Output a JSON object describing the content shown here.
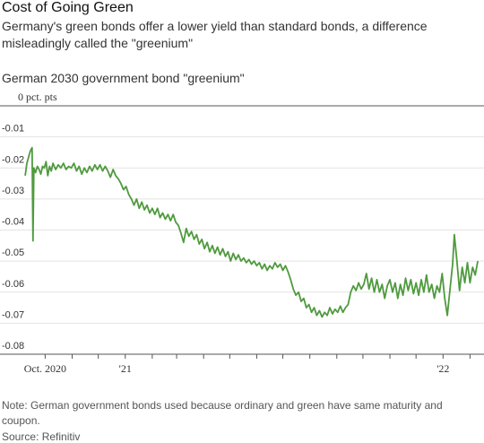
{
  "title": "Cost of Going Green",
  "subtitle": "Germany's green bonds offer a lower yield than standard bonds, a difference misleadingly called the \"greenium\"",
  "note": "Note: German government bonds used because ordinary and green have same maturity and coupon.",
  "source": "Source: Refinitiv",
  "chart_data": {
    "type": "line",
    "title": "German 2030 government bond \"greenium\"",
    "ylabel": "",
    "xlabel": "",
    "ylim": [
      -0.08,
      0
    ],
    "y_ticks": [
      {
        "value": 0,
        "label": "0 pct. pts"
      },
      {
        "value": -0.01,
        "label": "-0.01"
      },
      {
        "value": -0.02,
        "label": "-0.02"
      },
      {
        "value": -0.03,
        "label": "-0.03"
      },
      {
        "value": -0.04,
        "label": "-0.04"
      },
      {
        "value": -0.05,
        "label": "-0.05"
      },
      {
        "value": -0.06,
        "label": "-0.06"
      },
      {
        "value": -0.07,
        "label": "-0.07"
      },
      {
        "value": -0.08,
        "label": "-0.08"
      }
    ],
    "xlim": [
      "2020-09-10",
      "2022-02-15"
    ],
    "x_ticks": [
      "2020-10-01",
      "2020-11-01",
      "2020-12-01",
      "2021-01-01",
      "2021-02-01",
      "2021-03-01",
      "2021-04-01",
      "2021-05-01",
      "2021-06-01",
      "2021-07-01",
      "2021-08-01",
      "2021-09-01",
      "2021-10-01",
      "2021-11-01",
      "2021-12-01",
      "2022-01-01",
      "2022-02-01"
    ],
    "x_tick_labels": [
      {
        "date": "2020-10-01",
        "label": "Oct. 2020"
      },
      {
        "date": "2021-01-01",
        "label": "'21"
      },
      {
        "date": "2022-01-01",
        "label": "'22"
      }
    ],
    "grid": true,
    "series": [
      {
        "color": "#4f9a3e",
        "points": [
          [
            "2020-09-08",
            -0.0225
          ],
          [
            "2020-09-10",
            -0.0185
          ],
          [
            "2020-09-12",
            -0.0165
          ],
          [
            "2020-09-14",
            -0.0145
          ],
          [
            "2020-09-16",
            -0.0135
          ],
          [
            "2020-09-17",
            -0.0435
          ],
          [
            "2020-09-18",
            -0.02
          ],
          [
            "2020-09-20",
            -0.0215
          ],
          [
            "2020-09-22",
            -0.0195
          ],
          [
            "2020-09-24",
            -0.0205
          ],
          [
            "2020-09-26",
            -0.022
          ],
          [
            "2020-09-28",
            -0.0195
          ],
          [
            "2020-09-30",
            -0.02
          ],
          [
            "2020-10-02",
            -0.018
          ],
          [
            "2020-10-04",
            -0.0225
          ],
          [
            "2020-10-06",
            -0.0195
          ],
          [
            "2020-10-08",
            -0.021
          ],
          [
            "2020-10-10",
            -0.0185
          ],
          [
            "2020-10-13",
            -0.0205
          ],
          [
            "2020-10-16",
            -0.019
          ],
          [
            "2020-10-19",
            -0.02
          ],
          [
            "2020-10-22",
            -0.0185
          ],
          [
            "2020-10-25",
            -0.0205
          ],
          [
            "2020-10-28",
            -0.0195
          ],
          [
            "2020-10-31",
            -0.02
          ],
          [
            "2020-11-03",
            -0.0185
          ],
          [
            "2020-11-06",
            -0.021
          ],
          [
            "2020-11-09",
            -0.0195
          ],
          [
            "2020-11-12",
            -0.022
          ],
          [
            "2020-11-15",
            -0.02
          ],
          [
            "2020-11-18",
            -0.0215
          ],
          [
            "2020-11-21",
            -0.0195
          ],
          [
            "2020-11-24",
            -0.021
          ],
          [
            "2020-11-27",
            -0.019
          ],
          [
            "2020-11-30",
            -0.0205
          ],
          [
            "2020-12-03",
            -0.019
          ],
          [
            "2020-12-06",
            -0.021
          ],
          [
            "2020-12-09",
            -0.0195
          ],
          [
            "2020-12-12",
            -0.021
          ],
          [
            "2020-12-15",
            -0.023
          ],
          [
            "2020-12-18",
            -0.0205
          ],
          [
            "2020-12-21",
            -0.0225
          ],
          [
            "2020-12-24",
            -0.0235
          ],
          [
            "2020-12-27",
            -0.025
          ],
          [
            "2020-12-30",
            -0.027
          ],
          [
            "2021-01-02",
            -0.026
          ],
          [
            "2021-01-05",
            -0.0285
          ],
          [
            "2021-01-08",
            -0.03
          ],
          [
            "2021-01-11",
            -0.032
          ],
          [
            "2021-01-14",
            -0.03
          ],
          [
            "2021-01-17",
            -0.033
          ],
          [
            "2021-01-20",
            -0.031
          ],
          [
            "2021-01-23",
            -0.0335
          ],
          [
            "2021-01-26",
            -0.032
          ],
          [
            "2021-01-29",
            -0.0345
          ],
          [
            "2021-02-01",
            -0.033
          ],
          [
            "2021-02-04",
            -0.035
          ],
          [
            "2021-02-07",
            -0.033
          ],
          [
            "2021-02-10",
            -0.036
          ],
          [
            "2021-02-13",
            -0.0345
          ],
          [
            "2021-02-16",
            -0.0365
          ],
          [
            "2021-02-19",
            -0.035
          ],
          [
            "2021-02-22",
            -0.037
          ],
          [
            "2021-02-25",
            -0.035
          ],
          [
            "2021-02-28",
            -0.0375
          ],
          [
            "2021-03-03",
            -0.0385
          ],
          [
            "2021-03-06",
            -0.041
          ],
          [
            "2021-03-09",
            -0.044
          ],
          [
            "2021-03-12",
            -0.0395
          ],
          [
            "2021-03-15",
            -0.042
          ],
          [
            "2021-03-18",
            -0.0405
          ],
          [
            "2021-03-21",
            -0.043
          ],
          [
            "2021-03-24",
            -0.0415
          ],
          [
            "2021-03-27",
            -0.0445
          ],
          [
            "2021-03-30",
            -0.043
          ],
          [
            "2021-04-02",
            -0.046
          ],
          [
            "2021-04-05",
            -0.044
          ],
          [
            "2021-04-08",
            -0.047
          ],
          [
            "2021-04-11",
            -0.045
          ],
          [
            "2021-04-14",
            -0.0475
          ],
          [
            "2021-04-17",
            -0.0455
          ],
          [
            "2021-04-20",
            -0.048
          ],
          [
            "2021-04-23",
            -0.046
          ],
          [
            "2021-04-26",
            -0.0485
          ],
          [
            "2021-04-29",
            -0.047
          ],
          [
            "2021-05-02",
            -0.05
          ],
          [
            "2021-05-05",
            -0.0475
          ],
          [
            "2021-05-08",
            -0.0495
          ],
          [
            "2021-05-11",
            -0.048
          ],
          [
            "2021-05-14",
            -0.05
          ],
          [
            "2021-05-17",
            -0.049
          ],
          [
            "2021-05-20",
            -0.0505
          ],
          [
            "2021-05-23",
            -0.0495
          ],
          [
            "2021-05-26",
            -0.051
          ],
          [
            "2021-05-29",
            -0.05
          ],
          [
            "2021-06-01",
            -0.0515
          ],
          [
            "2021-06-04",
            -0.0505
          ],
          [
            "2021-06-07",
            -0.0525
          ],
          [
            "2021-06-10",
            -0.051
          ],
          [
            "2021-06-13",
            -0.053
          ],
          [
            "2021-06-16",
            -0.0515
          ],
          [
            "2021-06-19",
            -0.0525
          ],
          [
            "2021-06-22",
            -0.0505
          ],
          [
            "2021-06-25",
            -0.052
          ],
          [
            "2021-06-28",
            -0.051
          ],
          [
            "2021-07-01",
            -0.053
          ],
          [
            "2021-07-04",
            -0.0515
          ],
          [
            "2021-07-07",
            -0.0535
          ],
          [
            "2021-07-10",
            -0.056
          ],
          [
            "2021-07-13",
            -0.059
          ],
          [
            "2021-07-16",
            -0.061
          ],
          [
            "2021-07-19",
            -0.06
          ],
          [
            "2021-07-22",
            -0.063
          ],
          [
            "2021-07-25",
            -0.062
          ],
          [
            "2021-07-28",
            -0.065
          ],
          [
            "2021-07-31",
            -0.064
          ],
          [
            "2021-08-03",
            -0.0665
          ],
          [
            "2021-08-06",
            -0.065
          ],
          [
            "2021-08-09",
            -0.0675
          ],
          [
            "2021-08-12",
            -0.066
          ],
          [
            "2021-08-15",
            -0.068
          ],
          [
            "2021-08-18",
            -0.0665
          ],
          [
            "2021-08-21",
            -0.0675
          ],
          [
            "2021-08-24",
            -0.065
          ],
          [
            "2021-08-27",
            -0.067
          ],
          [
            "2021-08-30",
            -0.0655
          ],
          [
            "2021-09-02",
            -0.0665
          ],
          [
            "2021-09-05",
            -0.0645
          ],
          [
            "2021-09-08",
            -0.0665
          ],
          [
            "2021-09-11",
            -0.065
          ],
          [
            "2021-09-14",
            -0.064
          ],
          [
            "2021-09-17",
            -0.06
          ],
          [
            "2021-09-20",
            -0.058
          ],
          [
            "2021-09-23",
            -0.0595
          ],
          [
            "2021-09-26",
            -0.057
          ],
          [
            "2021-09-29",
            -0.059
          ],
          [
            "2021-10-02",
            -0.0575
          ],
          [
            "2021-10-05",
            -0.054
          ],
          [
            "2021-10-08",
            -0.059
          ],
          [
            "2021-10-11",
            -0.0555
          ],
          [
            "2021-10-14",
            -0.06
          ],
          [
            "2021-10-17",
            -0.056
          ],
          [
            "2021-10-20",
            -0.06
          ],
          [
            "2021-10-23",
            -0.0575
          ],
          [
            "2021-10-26",
            -0.062
          ],
          [
            "2021-10-29",
            -0.058
          ],
          [
            "2021-11-01",
            -0.056
          ],
          [
            "2021-11-04",
            -0.06
          ],
          [
            "2021-11-07",
            -0.057
          ],
          [
            "2021-11-10",
            -0.062
          ],
          [
            "2021-11-13",
            -0.0575
          ],
          [
            "2021-11-16",
            -0.061
          ],
          [
            "2021-11-19",
            -0.0555
          ],
          [
            "2021-11-22",
            -0.0595
          ],
          [
            "2021-11-25",
            -0.056
          ],
          [
            "2021-11-28",
            -0.0605
          ],
          [
            "2021-12-01",
            -0.057
          ],
          [
            "2021-12-04",
            -0.061
          ],
          [
            "2021-12-07",
            -0.056
          ],
          [
            "2021-12-10",
            -0.06
          ],
          [
            "2021-12-13",
            -0.0545
          ],
          [
            "2021-12-16",
            -0.06
          ],
          [
            "2021-12-19",
            -0.0575
          ],
          [
            "2021-12-22",
            -0.062
          ],
          [
            "2021-12-25",
            -0.058
          ],
          [
            "2021-12-28",
            -0.06
          ],
          [
            "2021-12-31",
            -0.054
          ],
          [
            "2022-01-03",
            -0.062
          ],
          [
            "2022-01-06",
            -0.0675
          ],
          [
            "2022-01-09",
            -0.059
          ],
          [
            "2022-01-12",
            -0.051
          ],
          [
            "2022-01-14",
            -0.0415
          ],
          [
            "2022-01-17",
            -0.05
          ],
          [
            "2022-01-20",
            -0.0595
          ],
          [
            "2022-01-23",
            -0.052
          ],
          [
            "2022-01-26",
            -0.057
          ],
          [
            "2022-01-29",
            -0.0505
          ],
          [
            "2022-02-01",
            -0.057
          ],
          [
            "2022-02-04",
            -0.052
          ],
          [
            "2022-02-07",
            -0.0545
          ],
          [
            "2022-02-10",
            -0.05
          ]
        ]
      }
    ]
  }
}
